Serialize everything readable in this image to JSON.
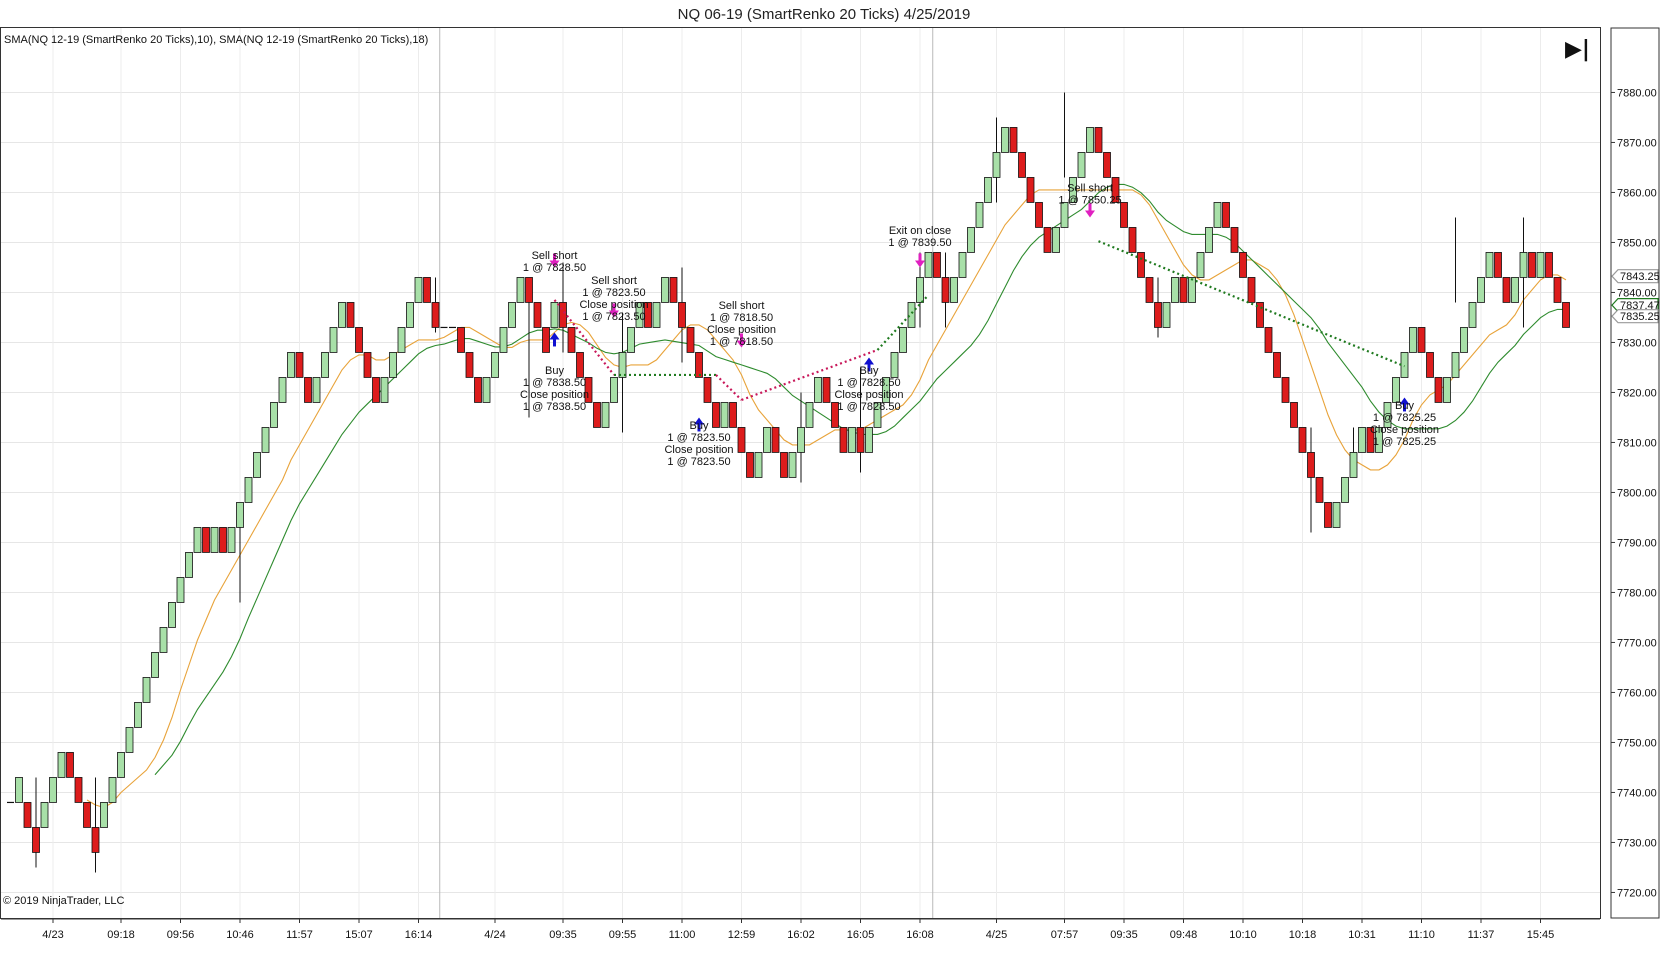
{
  "chart_data": {
    "type": "candlestick",
    "title": "NQ 06-19 (SmartRenko 20 Ticks)  4/25/2019",
    "indicator_label": "SMA(NQ 12-19 (SmartRenko 20 Ticks),10), SMA(NQ 12-19 (SmartRenko 20 Ticks),18)",
    "copyright": "© 2019 NinjaTrader, LLC",
    "end_button_glyph": "▶|",
    "ylim": [
      7715,
      7885
    ],
    "y_ticks": [
      7720,
      7730,
      7740,
      7750,
      7760,
      7770,
      7780,
      7790,
      7800,
      7810,
      7820,
      7830,
      7840,
      7850,
      7860,
      7870,
      7880
    ],
    "y_tick_labels": [
      "7720.00",
      "7730.00",
      "7740.00",
      "7750.00",
      "7760.00",
      "7770.00",
      "7780.00",
      "7790.00",
      "7800.00",
      "7810.00",
      "7820.00",
      "7830.00",
      "7840.00",
      "7850.00",
      "7860.00",
      "7870.00",
      "7880.00"
    ],
    "x_labels": [
      {
        "bar": 5,
        "label": "4/23"
      },
      {
        "bar": 13,
        "label": "09:18"
      },
      {
        "bar": 20,
        "label": "09:56"
      },
      {
        "bar": 27,
        "label": "10:46"
      },
      {
        "bar": 34,
        "label": "11:57"
      },
      {
        "bar": 41,
        "label": "15:07"
      },
      {
        "bar": 48,
        "label": "16:14"
      },
      {
        "bar": 57,
        "label": "4/24"
      },
      {
        "bar": 65,
        "label": "09:35"
      },
      {
        "bar": 72,
        "label": "09:55"
      },
      {
        "bar": 79,
        "label": "11:00"
      },
      {
        "bar": 86,
        "label": "12:59"
      },
      {
        "bar": 93,
        "label": "16:02"
      },
      {
        "bar": 100,
        "label": "16:05"
      },
      {
        "bar": 107,
        "label": "16:08"
      },
      {
        "bar": 116,
        "label": "4/25"
      },
      {
        "bar": 124,
        "label": "07:57"
      },
      {
        "bar": 131,
        "label": "09:35"
      },
      {
        "bar": 138,
        "label": "09:48"
      },
      {
        "bar": 145,
        "label": "10:10"
      },
      {
        "bar": 152,
        "label": "10:18"
      },
      {
        "bar": 159,
        "label": "10:31"
      },
      {
        "bar": 166,
        "label": "11:10"
      },
      {
        "bar": 173,
        "label": "11:37"
      },
      {
        "bar": 180,
        "label": "15:45"
      }
    ],
    "session_breaks": [
      51,
      109
    ],
    "price_tags": [
      {
        "price": 7843.25,
        "label": "7843.25",
        "color": "#9a9a9a"
      },
      {
        "price": 7837.47,
        "label": "7837.47",
        "color": "#1f7a1f"
      },
      {
        "price": 7835.25,
        "label": "7835.25",
        "color": "#9a9a9a"
      }
    ],
    "closes": [
      7738,
      7743,
      7733,
      7728,
      7738,
      7743,
      7748,
      7743,
      7738,
      7733,
      7728,
      7738,
      7743,
      7748,
      7753,
      7758,
      7763,
      7768,
      7773,
      7778,
      7783,
      7788,
      7793,
      7788,
      7793,
      7788,
      7793,
      7798,
      7803,
      7808,
      7813,
      7818,
      7823,
      7828,
      7823,
      7818,
      7823,
      7828,
      7833,
      7838,
      7833,
      7828,
      7823,
      7818,
      7823,
      7828,
      7833,
      7838,
      7843,
      7838,
      7833,
      7833,
      7833,
      7828,
      7823,
      7818,
      7823,
      7828,
      7833,
      7838,
      7843,
      7838,
      7833,
      7828,
      7838,
      7833,
      7828,
      7823,
      7818,
      7813,
      7818,
      7823,
      7828,
      7833,
      7838,
      7833,
      7838,
      7843,
      7838,
      7833,
      7828,
      7823,
      7818,
      7813,
      7818,
      7813,
      7808,
      7803,
      7808,
      7813,
      7808,
      7803,
      7808,
      7813,
      7818,
      7823,
      7818,
      7813,
      7808,
      7813,
      7808,
      7813,
      7818,
      7823,
      7828,
      7833,
      7838,
      7843,
      7848,
      7843,
      7838,
      7843,
      7848,
      7853,
      7858,
      7863,
      7868,
      7873,
      7868,
      7863,
      7858,
      7853,
      7848,
      7853,
      7858,
      7863,
      7868,
      7873,
      7868,
      7863,
      7858,
      7853,
      7848,
      7843,
      7838,
      7833,
      7838,
      7843,
      7838,
      7843,
      7848,
      7853,
      7858,
      7853,
      7848,
      7843,
      7838,
      7833,
      7828,
      7823,
      7818,
      7813,
      7808,
      7803,
      7798,
      7793,
      7798,
      7803,
      7808,
      7813,
      7808,
      7813,
      7818,
      7823,
      7828,
      7833,
      7828,
      7823,
      7818,
      7823,
      7828,
      7833,
      7838,
      7843,
      7848,
      7843,
      7838,
      7843,
      7848,
      7843,
      7848,
      7843,
      7838,
      7833
    ],
    "wicks": [
      {
        "bar": 3,
        "high": 7743,
        "low": 7725
      },
      {
        "bar": 10,
        "high": 7743,
        "low": 7724
      },
      {
        "bar": 27,
        "high": 7793,
        "low": 7778
      },
      {
        "bar": 50,
        "high": 7843,
        "low": 7832
      },
      {
        "bar": 61,
        "high": 7840,
        "low": 7815
      },
      {
        "bar": 65,
        "high": 7846,
        "low": 7828
      },
      {
        "bar": 72,
        "high": 7836,
        "low": 7812
      },
      {
        "bar": 79,
        "high": 7845,
        "low": 7826
      },
      {
        "bar": 93,
        "high": 7820,
        "low": 7802
      },
      {
        "bar": 100,
        "high": 7825,
        "low": 7804
      },
      {
        "bar": 107,
        "high": 7848,
        "low": 7833
      },
      {
        "bar": 110,
        "high": 7848,
        "low": 7833
      },
      {
        "bar": 116,
        "high": 7875,
        "low": 7858
      },
      {
        "bar": 124,
        "high": 7880,
        "low": 7863
      },
      {
        "bar": 135,
        "high": 7843,
        "low": 7831
      },
      {
        "bar": 153,
        "high": 7813,
        "low": 7792
      },
      {
        "bar": 158,
        "high": 7813,
        "low": 7803
      },
      {
        "bar": 170,
        "high": 7855,
        "low": 7838
      },
      {
        "bar": 178,
        "high": 7855,
        "low": 7833
      }
    ],
    "series": [
      {
        "name": "SMA(NQ 12-19 (SmartRenko 20 Ticks),10)",
        "period": 10,
        "color": "#e8a33a"
      },
      {
        "name": "SMA(NQ 12-19 (SmartRenko 20 Ticks),18)",
        "period": 18,
        "color": "#2e8b2e"
      }
    ],
    "trades": [
      {
        "from_bar": 64,
        "from_price": 7838.5,
        "to_bar": 71,
        "to_price": 7823.5,
        "color": "#c8185a"
      },
      {
        "from_bar": 71,
        "from_price": 7823.5,
        "to_bar": 83,
        "to_price": 7823.5,
        "color": "#1f7a1f"
      },
      {
        "from_bar": 83,
        "from_price": 7823.5,
        "to_bar": 86,
        "to_price": 7818.5,
        "color": "#c8185a"
      },
      {
        "from_bar": 86,
        "from_price": 7818.5,
        "to_bar": 102,
        "to_price": 7828.5,
        "color": "#c8185a"
      },
      {
        "from_bar": 102,
        "from_price": 7828.5,
        "to_bar": 108,
        "to_price": 7839.5,
        "color": "#1f7a1f"
      },
      {
        "from_bar": 128,
        "from_price": 7850.25,
        "to_bar": 164,
        "to_price": 7825.25,
        "color": "#1f7a1f"
      }
    ],
    "markers": [
      {
        "bar": 64,
        "price": 7846,
        "dir": "down",
        "color": "#e020c0"
      },
      {
        "bar": 64,
        "price": 7831,
        "dir": "up",
        "color": "#1010d0"
      },
      {
        "bar": 71,
        "price": 7836,
        "dir": "down",
        "color": "#e020c0"
      },
      {
        "bar": 81,
        "price": 7814,
        "dir": "up",
        "color": "#1010d0"
      },
      {
        "bar": 86,
        "price": 7830,
        "dir": "down",
        "color": "#e020c0"
      },
      {
        "bar": 101,
        "price": 7826,
        "dir": "up",
        "color": "#1010d0"
      },
      {
        "bar": 107,
        "price": 7846,
        "dir": "down",
        "color": "#e020c0"
      },
      {
        "bar": 127,
        "price": 7856,
        "dir": "down",
        "color": "#e020c0"
      },
      {
        "bar": 164,
        "price": 7818,
        "dir": "up",
        "color": "#1010d0"
      }
    ],
    "annotations": [
      {
        "bar": 64,
        "price": 7847.5,
        "lines": [
          "Sell short",
          "1 @ 7828.50"
        ]
      },
      {
        "bar": 64,
        "price": 7824.5,
        "lines": [
          "Buy",
          "1 @ 7838.50",
          "Close position",
          "1 @ 7838.50"
        ]
      },
      {
        "bar": 71,
        "price": 7842.5,
        "lines": [
          "Sell short",
          "1 @ 7823.50",
          "Close position",
          "1 @ 7823.50"
        ]
      },
      {
        "bar": 81,
        "price": 7813.5,
        "lines": [
          "Buy",
          "1 @ 7823.50",
          "Close position",
          "1 @ 7823.50"
        ]
      },
      {
        "bar": 86,
        "price": 7837.5,
        "lines": [
          "Sell short",
          "1 @ 7818.50",
          "Close position",
          "1 @ 7818.50"
        ]
      },
      {
        "bar": 101,
        "price": 7824.5,
        "lines": [
          "Buy",
          "1 @ 7828.50",
          "Close position",
          "1 @ 7828.50"
        ]
      },
      {
        "bar": 107,
        "price": 7852.5,
        "lines": [
          "Exit on close",
          "1 @ 7839.50"
        ]
      },
      {
        "bar": 127,
        "price": 7861,
        "lines": [
          "Sell short",
          "1 @ 7850.25"
        ]
      },
      {
        "bar": 164,
        "price": 7817.5,
        "lines": [
          "Buy",
          "1 @ 7825.25",
          "Close position",
          "1 @ 7825.25"
        ]
      }
    ],
    "up_color": "#a8e0a8",
    "down_color": "#dd1c1c",
    "grid": true
  }
}
